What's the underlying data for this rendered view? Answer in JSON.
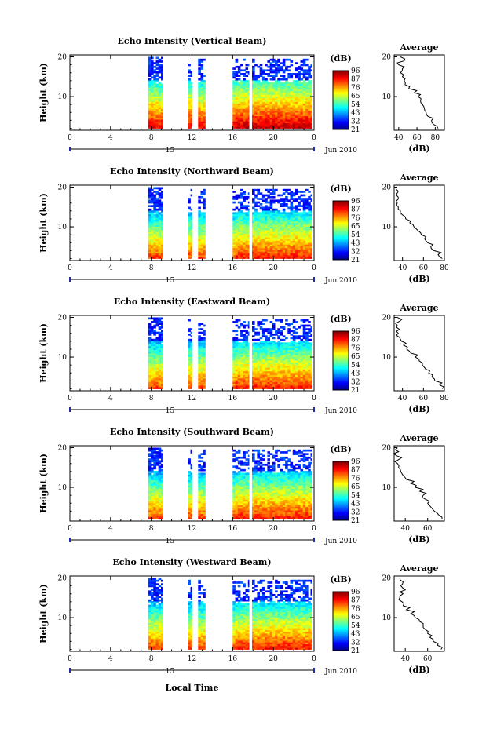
{
  "chart_data": {
    "type": "heatmap",
    "time_axis": {
      "ticks": [
        "0",
        "4",
        "8",
        "12",
        "16",
        "20",
        "0"
      ],
      "ticks_values": [
        0,
        4,
        8,
        12,
        16,
        20,
        24
      ],
      "xlim": [
        0,
        24
      ],
      "day_label": "15",
      "month_label": "Jun 2010",
      "xlabel": "Local Time"
    },
    "data_coverage_hours": [
      [
        7.7,
        9.1
      ],
      [
        11.6,
        12.0
      ],
      [
        12.6,
        13.3
      ],
      [
        16.0,
        17.6
      ],
      [
        17.9,
        23.8
      ]
    ],
    "colorbar": {
      "label": "(dB)",
      "ticks": [
        "96",
        "87",
        "76",
        "65",
        "54",
        "43",
        "32",
        "21"
      ],
      "range": [
        21,
        96
      ]
    },
    "panels": [
      {
        "title": "Echo Intensity (Vertical Beam)",
        "ylabel": "Height (km)",
        "yticks": [
          "20",
          "10"
        ],
        "ylim": [
          1.5,
          20.5
        ],
        "average": {
          "title": "Average",
          "xlabel": "(dB)",
          "xticks": [
            "40",
            "60",
            "80"
          ],
          "xlim": [
            35,
            90
          ],
          "heights": [
            2,
            3,
            4,
            5,
            6,
            7,
            8,
            9,
            10,
            11,
            12,
            13,
            14,
            15,
            16,
            17,
            18,
            19,
            20
          ],
          "values": [
            83,
            78,
            76,
            72,
            70,
            68,
            66,
            64,
            61,
            57,
            51,
            47,
            46,
            44,
            42,
            44,
            40,
            46,
            42
          ]
        }
      },
      {
        "title": "Echo Intensity (Northward Beam)",
        "ylabel": "Height (km)",
        "yticks": [
          "20",
          "10"
        ],
        "ylim": [
          1.5,
          20.5
        ],
        "average": {
          "title": "Average",
          "xlabel": "(dB)",
          "xticks": [
            "40",
            "60",
            "80"
          ],
          "xlim": [
            32,
            80
          ],
          "heights": [
            2,
            3,
            4,
            5,
            6,
            7,
            8,
            9,
            10,
            11,
            12,
            13,
            14,
            15,
            16,
            17,
            18,
            19,
            20
          ],
          "values": [
            78,
            74,
            70,
            67,
            64,
            61,
            58,
            55,
            51,
            47,
            43,
            40,
            38,
            36,
            35,
            36,
            34,
            36,
            34
          ]
        }
      },
      {
        "title": "Echo Intensity (Eastward Beam)",
        "ylabel": "Height (km)",
        "yticks": [
          "20",
          "10"
        ],
        "ylim": [
          1.5,
          20.5
        ],
        "average": {
          "title": "Average",
          "xlabel": "(dB)",
          "xticks": [
            "40",
            "60",
            "80"
          ],
          "xlim": [
            32,
            80
          ],
          "heights": [
            2,
            3,
            4,
            5,
            6,
            7,
            8,
            9,
            10,
            11,
            12,
            13,
            14,
            15,
            16,
            17,
            18,
            19,
            20
          ],
          "values": [
            78,
            75,
            71,
            68,
            65,
            62,
            59,
            56,
            52,
            48,
            44,
            41,
            39,
            37,
            36,
            37,
            35,
            37,
            35
          ]
        }
      },
      {
        "title": "Echo Intensity (Southward Beam)",
        "ylabel": "Height (km)",
        "yticks": [
          "20",
          "10"
        ],
        "ylim": [
          1.5,
          20.5
        ],
        "average": {
          "title": "Average",
          "xlabel": "(dB)",
          "xticks": [
            "40",
            "60"
          ],
          "xlim": [
            30,
            75
          ],
          "heights": [
            2,
            3,
            4,
            5,
            6,
            7,
            8,
            9,
            10,
            11,
            12,
            13,
            14,
            15,
            16,
            17,
            18,
            19,
            20
          ],
          "values": [
            73,
            70,
            66,
            63,
            60,
            58,
            56,
            53,
            49,
            45,
            41,
            38,
            36,
            34,
            33,
            34,
            32,
            34,
            33
          ]
        }
      },
      {
        "title": "Echo Intensity (Westward Beam)",
        "ylabel": "Height (km)",
        "yticks": [
          "20",
          "10"
        ],
        "ylim": [
          1.5,
          20.5
        ],
        "average": {
          "title": "Average",
          "xlabel": "(dB)",
          "xticks": [
            "40",
            "60"
          ],
          "xlim": [
            30,
            75
          ],
          "heights": [
            2,
            3,
            4,
            5,
            6,
            7,
            8,
            9,
            10,
            11,
            12,
            13,
            14,
            15,
            16,
            17,
            18,
            19,
            20
          ],
          "values": [
            72,
            69,
            65,
            62,
            60,
            58,
            56,
            53,
            49,
            45,
            41,
            38,
            37,
            35,
            38,
            40,
            36,
            38,
            35
          ]
        }
      }
    ]
  }
}
